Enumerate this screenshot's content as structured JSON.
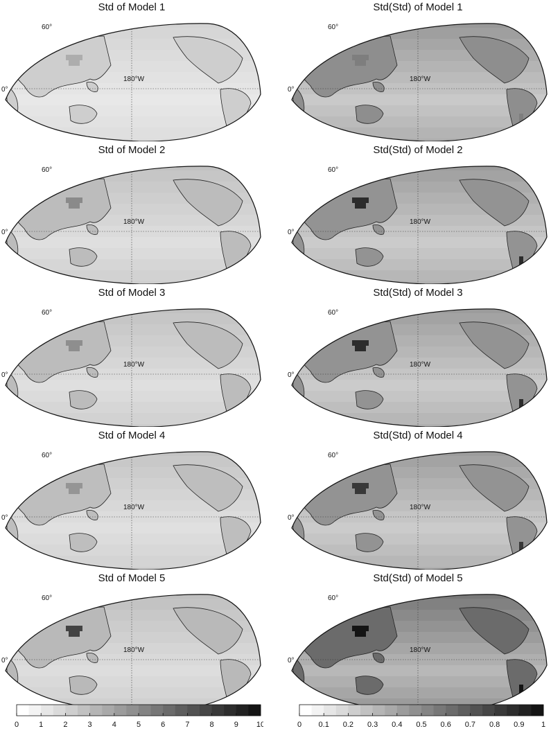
{
  "labels": {
    "lat_60": "60°",
    "lat_0": "0°",
    "lon_180": "180°W"
  },
  "left_panels": [
    {
      "title": "Std of Model 1",
      "intensity": 0.18,
      "hot_spot": 0.35
    },
    {
      "title": "Std of Model 2",
      "intensity": 0.25,
      "hot_spot": 0.5
    },
    {
      "title": "Std of Model 3",
      "intensity": 0.25,
      "hot_spot": 0.48
    },
    {
      "title": "Std of Model 4",
      "intensity": 0.24,
      "hot_spot": 0.45
    },
    {
      "title": "Std of Model 5",
      "intensity": 0.26,
      "hot_spot": 0.8
    }
  ],
  "right_panels": [
    {
      "title": "Std(Std) of Model 1",
      "intensity": 0.42,
      "hot_spot": 0.55
    },
    {
      "title": "Std(Std) of Model 2",
      "intensity": 0.4,
      "hot_spot": 0.9
    },
    {
      "title": "Std(Std) of Model 3",
      "intensity": 0.4,
      "hot_spot": 0.9
    },
    {
      "title": "Std(Std) of Model 4",
      "intensity": 0.4,
      "hot_spot": 0.85
    },
    {
      "title": "Std(Std) of Model 5",
      "intensity": 0.55,
      "hot_spot": 1.0
    }
  ],
  "colorbar_left": {
    "ticks": [
      "0",
      "1",
      "2",
      "3",
      "4",
      "5",
      "6",
      "7",
      "8",
      "9",
      "10"
    ],
    "range": [
      0,
      10
    ]
  },
  "colorbar_right": {
    "ticks": [
      "0",
      "0.1",
      "0.2",
      "0.3",
      "0.4",
      "0.5",
      "0.6",
      "0.7",
      "0.8",
      "0.9",
      "1"
    ],
    "range": [
      0,
      1
    ]
  },
  "colors": {
    "low": "#ffffff",
    "high": "#000000",
    "line": "#222222"
  }
}
